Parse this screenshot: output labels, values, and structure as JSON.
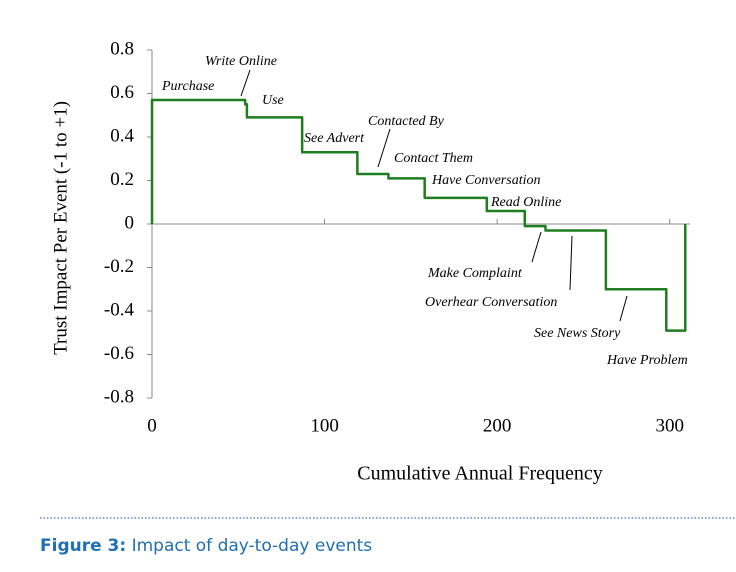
{
  "chart_data": {
    "type": "step",
    "xlabel": "Cumulative Annual Frequency",
    "ylabel": "Trust Impact Per Event (-1 to +1)",
    "bins": [
      0,
      54,
      55,
      87,
      119,
      137,
      158,
      194,
      216,
      228,
      263,
      298,
      309
    ],
    "values": [
      0.57,
      0.55,
      0.49,
      0.33,
      0.23,
      0.21,
      0.12,
      0.06,
      -0.01,
      -0.03,
      -0.3,
      -0.49
    ],
    "labels": [
      "Purchase",
      "Write Online",
      "Use",
      "See Advert",
      "Contacted By",
      "Contact Them",
      "Have Conversation",
      "Read Online",
      "Make Complaint",
      "Overhear Conversation",
      "See News Story",
      "Have Problem"
    ],
    "color": "#1e7d1e",
    "xlim": [
      0,
      310
    ],
    "xticks": [
      0,
      100,
      200,
      300
    ],
    "ylim": [
      -0.8,
      0.8
    ],
    "yticks": [
      0.8,
      0.6,
      0.4,
      0.2,
      0,
      -0.2,
      -0.4,
      -0.6,
      -0.8
    ]
  },
  "caption": {
    "label": "Figure 3:",
    "text": "Impact of day-to-day events"
  }
}
